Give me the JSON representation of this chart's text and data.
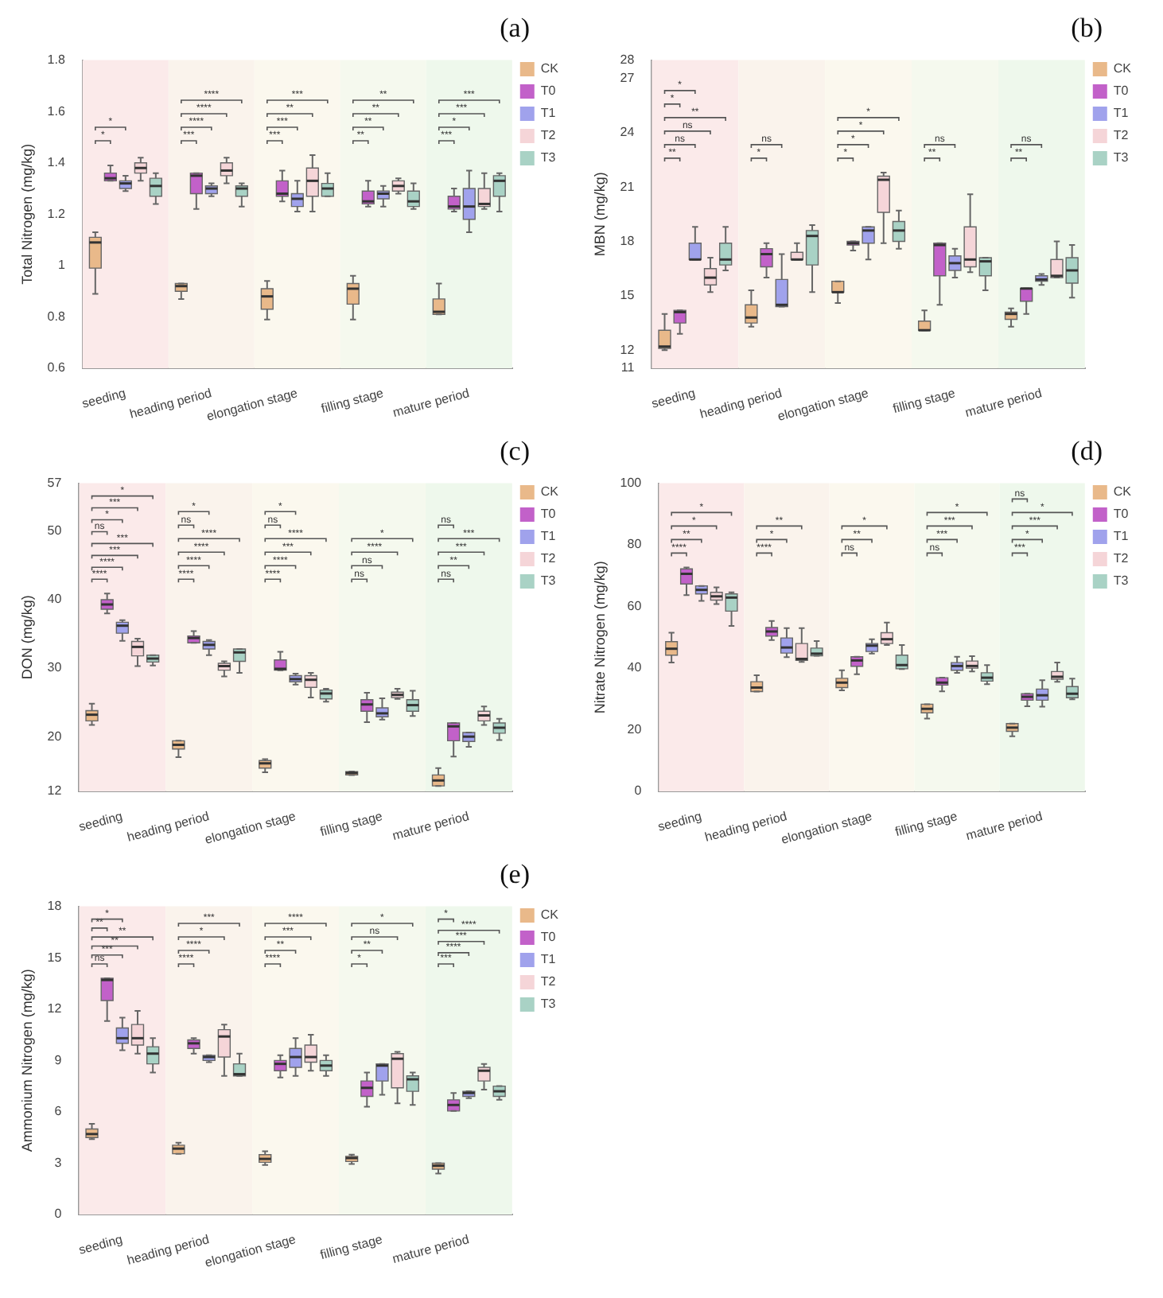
{
  "chart_data": [
    {
      "type": "box",
      "title": "(a)",
      "ylabel": "Total Nitrogen (mg/kg)",
      "categories": [
        "seeding",
        "heading period",
        "elongation stage",
        "filling stage",
        "mature period"
      ],
      "ylim": [
        0.6,
        1.8
      ],
      "yticks": [
        0.6,
        0.8,
        1,
        1.2,
        1.4,
        1.6,
        1.8
      ],
      "grid": false,
      "legend": "top right",
      "series": [
        {
          "name": "CK",
          "color": "#e9b98a",
          "boxes": [
            {
              "low": 0.89,
              "q1": 0.99,
              "median": 1.09,
              "q3": 1.11,
              "high": 1.13
            },
            {
              "low": 0.87,
              "q1": 0.9,
              "median": 0.92,
              "q3": 0.93,
              "high": 0.93
            },
            {
              "low": 0.79,
              "q1": 0.83,
              "median": 0.88,
              "q3": 0.91,
              "high": 0.94
            },
            {
              "low": 0.79,
              "q1": 0.85,
              "median": 0.91,
              "q3": 0.93,
              "high": 0.96
            },
            {
              "low": 0.81,
              "q1": 0.81,
              "median": 0.82,
              "q3": 0.87,
              "high": 0.93
            }
          ]
        },
        {
          "name": "T0",
          "color": "#c261c9",
          "boxes": [
            {
              "low": 1.33,
              "q1": 1.33,
              "median": 1.34,
              "q3": 1.36,
              "high": 1.39
            },
            {
              "low": 1.22,
              "q1": 1.28,
              "median": 1.35,
              "q3": 1.36,
              "high": 1.36
            },
            {
              "low": 1.25,
              "q1": 1.27,
              "median": 1.28,
              "q3": 1.33,
              "high": 1.37
            },
            {
              "low": 1.23,
              "q1": 1.24,
              "median": 1.25,
              "q3": 1.29,
              "high": 1.33
            },
            {
              "low": 1.21,
              "q1": 1.22,
              "median": 1.23,
              "q3": 1.27,
              "high": 1.3
            }
          ]
        },
        {
          "name": "T1",
          "color": "#a0a2ec",
          "boxes": [
            {
              "low": 1.29,
              "q1": 1.3,
              "median": 1.32,
              "q3": 1.33,
              "high": 1.35
            },
            {
              "low": 1.27,
              "q1": 1.28,
              "median": 1.3,
              "q3": 1.31,
              "high": 1.32
            },
            {
              "low": 1.21,
              "q1": 1.23,
              "median": 1.26,
              "q3": 1.28,
              "high": 1.33
            },
            {
              "low": 1.23,
              "q1": 1.26,
              "median": 1.28,
              "q3": 1.29,
              "high": 1.31
            },
            {
              "low": 1.13,
              "q1": 1.18,
              "median": 1.23,
              "q3": 1.3,
              "high": 1.37
            }
          ]
        },
        {
          "name": "T2",
          "color": "#f5d5d8",
          "boxes": [
            {
              "low": 1.33,
              "q1": 1.36,
              "median": 1.38,
              "q3": 1.4,
              "high": 1.42
            },
            {
              "low": 1.32,
              "q1": 1.35,
              "median": 1.37,
              "q3": 1.4,
              "high": 1.42
            },
            {
              "low": 1.21,
              "q1": 1.27,
              "median": 1.33,
              "q3": 1.38,
              "high": 1.43
            },
            {
              "low": 1.28,
              "q1": 1.29,
              "median": 1.31,
              "q3": 1.33,
              "high": 1.34
            },
            {
              "low": 1.22,
              "q1": 1.23,
              "median": 1.24,
              "q3": 1.3,
              "high": 1.36
            }
          ]
        },
        {
          "name": "T3",
          "color": "#a9d2c5",
          "boxes": [
            {
              "low": 1.24,
              "q1": 1.27,
              "median": 1.31,
              "q3": 1.34,
              "high": 1.36
            },
            {
              "low": 1.23,
              "q1": 1.27,
              "median": 1.3,
              "q3": 1.31,
              "high": 1.32
            },
            {
              "low": 1.27,
              "q1": 1.27,
              "median": 1.3,
              "q3": 1.32,
              "high": 1.36
            },
            {
              "low": 1.22,
              "q1": 1.23,
              "median": 1.25,
              "q3": 1.29,
              "high": 1.32
            },
            {
              "low": 1.21,
              "q1": 1.27,
              "median": 1.33,
              "q3": 1.35,
              "high": 1.36
            }
          ]
        }
      ],
      "bands": [
        {
          "axis": "x",
          "from": "seeding",
          "to": "seeding",
          "color": "#fbeaea"
        },
        {
          "axis": "x",
          "from": "heading period",
          "to": "heading period",
          "color": "#faf3ec"
        },
        {
          "axis": "x",
          "from": "elongation stage",
          "to": "elongation stage",
          "color": "#fbf8ee"
        },
        {
          "axis": "x",
          "from": "filling stage",
          "to": "filling stage",
          "color": "#f5f9ee"
        },
        {
          "axis": "x",
          "from": "mature period",
          "to": "mature period",
          "color": "#eef8ec"
        }
      ],
      "annotations": [
        "*",
        "*",
        "***",
        "****",
        "****",
        "****",
        "***",
        "***",
        "**",
        "***",
        "**",
        "**",
        "**",
        "**",
        "***",
        "*",
        "***",
        "***"
      ]
    },
    {
      "type": "box",
      "title": "(b)",
      "ylabel": "MBN (mg/kg)",
      "categories": [
        "seeding",
        "heading period",
        "elongation stage",
        "filling stage",
        "mature period"
      ],
      "ylim": [
        11,
        28
      ],
      "yticks": [
        11,
        12,
        15,
        18,
        21,
        24,
        27,
        28
      ],
      "grid": false,
      "legend": "top right",
      "series": [
        {
          "name": "CK",
          "color": "#e9b98a",
          "boxes": [
            {
              "low": 12.0,
              "q1": 12.1,
              "median": 12.2,
              "q3": 13.1,
              "high": 14.0
            },
            {
              "low": 13.3,
              "q1": 13.5,
              "median": 13.8,
              "q3": 14.5,
              "high": 15.3
            },
            {
              "low": 14.6,
              "q1": 15.2,
              "median": 15.2,
              "q3": 15.8,
              "high": 15.8
            },
            {
              "low": 13.1,
              "q1": 13.1,
              "median": 13.1,
              "q3": 13.6,
              "high": 14.2
            },
            {
              "low": 13.3,
              "q1": 13.7,
              "median": 14.0,
              "q3": 14.1,
              "high": 14.3
            }
          ]
        },
        {
          "name": "T0",
          "color": "#c261c9",
          "boxes": [
            {
              "low": 12.9,
              "q1": 13.5,
              "median": 14.1,
              "q3": 14.2,
              "high": 14.2
            },
            {
              "low": 16.0,
              "q1": 16.6,
              "median": 17.3,
              "q3": 17.6,
              "high": 17.9
            },
            {
              "low": 17.5,
              "q1": 17.8,
              "median": 17.9,
              "q3": 18.0,
              "high": 18.0
            },
            {
              "low": 14.5,
              "q1": 16.1,
              "median": 17.8,
              "q3": 17.9,
              "high": 17.9
            },
            {
              "low": 14.0,
              "q1": 14.7,
              "median": 15.4,
              "q3": 15.4,
              "high": 15.4
            }
          ]
        },
        {
          "name": "T1",
          "color": "#a0a2ec",
          "boxes": [
            {
              "low": 17.0,
              "q1": 17.0,
              "median": 17.0,
              "q3": 17.9,
              "high": 18.8
            },
            {
              "low": 14.4,
              "q1": 14.4,
              "median": 14.5,
              "q3": 15.9,
              "high": 17.3
            },
            {
              "low": 17.0,
              "q1": 17.9,
              "median": 18.6,
              "q3": 18.8,
              "high": 18.8
            },
            {
              "low": 16.0,
              "q1": 16.4,
              "median": 16.8,
              "q3": 17.2,
              "high": 17.6
            },
            {
              "low": 15.6,
              "q1": 15.8,
              "median": 15.9,
              "q3": 16.1,
              "high": 16.2
            }
          ]
        },
        {
          "name": "T2",
          "color": "#f5d5d8",
          "boxes": [
            {
              "low": 15.2,
              "q1": 15.6,
              "median": 16.0,
              "q3": 16.5,
              "high": 17.1
            },
            {
              "low": 17.0,
              "q1": 17.0,
              "median": 17.0,
              "q3": 17.4,
              "high": 17.9
            },
            {
              "low": 17.9,
              "q1": 19.6,
              "median": 21.4,
              "q3": 21.6,
              "high": 21.8
            },
            {
              "low": 16.3,
              "q1": 16.6,
              "median": 17.0,
              "q3": 18.8,
              "high": 20.6
            },
            {
              "low": 16.0,
              "q1": 16.0,
              "median": 16.1,
              "q3": 17.0,
              "high": 18.0
            }
          ]
        },
        {
          "name": "T3",
          "color": "#a9d2c5",
          "boxes": [
            {
              "low": 16.4,
              "q1": 16.7,
              "median": 17.0,
              "q3": 17.9,
              "high": 18.8
            },
            {
              "low": 15.2,
              "q1": 16.7,
              "median": 18.3,
              "q3": 18.6,
              "high": 18.9
            },
            {
              "low": 17.6,
              "q1": 18.0,
              "median": 18.6,
              "q3": 19.1,
              "high": 19.7
            },
            {
              "low": 15.3,
              "q1": 16.1,
              "median": 16.9,
              "q3": 17.1,
              "high": 17.1
            },
            {
              "low": 14.9,
              "q1": 15.7,
              "median": 16.4,
              "q3": 17.1,
              "high": 17.8
            }
          ]
        }
      ],
      "bands": [
        {
          "axis": "x",
          "from": "seeding",
          "to": "seeding",
          "color": "#fbeaea"
        },
        {
          "axis": "x",
          "from": "heading period",
          "to": "heading period",
          "color": "#faf3ec"
        },
        {
          "axis": "x",
          "from": "elongation stage",
          "to": "elongation stage",
          "color": "#fbf8ee"
        },
        {
          "axis": "x",
          "from": "filling stage",
          "to": "filling stage",
          "color": "#f5f9ee"
        },
        {
          "axis": "x",
          "from": "mature period",
          "to": "mature period",
          "color": "#eef8ec"
        }
      ],
      "annotations": [
        "**",
        "ns",
        "ns",
        "**",
        "*",
        "*",
        "*",
        "ns",
        "*",
        "*",
        "*",
        "*",
        "**",
        "ns",
        "**",
        "ns"
      ]
    },
    {
      "type": "box",
      "title": "(c)",
      "ylabel": "DON (mg/kg)",
      "categories": [
        "seeding",
        "heading period",
        "elongation stage",
        "filling stage",
        "mature period"
      ],
      "ylim": [
        12,
        57
      ],
      "yticks": [
        12,
        20,
        30,
        40,
        50,
        57
      ],
      "grid": false,
      "legend": "top right",
      "series": [
        {
          "name": "CK",
          "color": "#e9b98a",
          "boxes": [
            {
              "low": 21.7,
              "q1": 22.3,
              "median": 23.2,
              "q3": 23.8,
              "high": 24.8
            },
            {
              "low": 17.0,
              "q1": 18.2,
              "median": 18.8,
              "q3": 19.4,
              "high": 19.4
            },
            {
              "low": 14.8,
              "q1": 15.4,
              "median": 16.1,
              "q3": 16.5,
              "high": 16.7
            },
            {
              "low": 14.4,
              "q1": 14.4,
              "median": 14.7,
              "q3": 14.9,
              "high": 14.9
            },
            {
              "low": 12.8,
              "q1": 12.8,
              "median": 13.6,
              "q3": 14.4,
              "high": 15.4
            }
          ]
        },
        {
          "name": "T0",
          "color": "#c261c9",
          "boxes": [
            {
              "low": 38.0,
              "q1": 38.6,
              "median": 39.3,
              "q3": 40.0,
              "high": 40.9
            },
            {
              "low": 33.7,
              "q1": 33.7,
              "median": 34.4,
              "q3": 34.7,
              "high": 35.4
            },
            {
              "low": 29.7,
              "q1": 29.7,
              "median": 29.9,
              "q3": 31.2,
              "high": 32.4
            },
            {
              "low": 22.1,
              "q1": 23.7,
              "median": 24.7,
              "q3": 25.4,
              "high": 26.4
            },
            {
              "low": 17.1,
              "q1": 19.4,
              "median": 21.5,
              "q3": 22.0,
              "high": 22.0
            }
          ]
        },
        {
          "name": "T1",
          "color": "#a0a2ec",
          "boxes": [
            {
              "low": 34.0,
              "q1": 35.1,
              "median": 36.2,
              "q3": 36.7,
              "high": 37.0
            },
            {
              "low": 31.9,
              "q1": 32.8,
              "median": 33.4,
              "q3": 33.9,
              "high": 34.1
            },
            {
              "low": 27.6,
              "q1": 28.0,
              "median": 28.4,
              "q3": 28.9,
              "high": 29.2
            },
            {
              "low": 22.5,
              "q1": 22.9,
              "median": 23.4,
              "q3": 24.2,
              "high": 25.6
            },
            {
              "low": 18.5,
              "q1": 19.3,
              "median": 20.0,
              "q3": 20.6,
              "high": 20.6
            }
          ]
        },
        {
          "name": "T2",
          "color": "#f5d5d8",
          "boxes": [
            {
              "low": 30.3,
              "q1": 31.8,
              "median": 33.1,
              "q3": 33.9,
              "high": 34.3
            },
            {
              "low": 28.8,
              "q1": 29.7,
              "median": 30.3,
              "q3": 30.7,
              "high": 31.0
            },
            {
              "low": 25.7,
              "q1": 27.2,
              "median": 28.3,
              "q3": 28.9,
              "high": 29.3
            },
            {
              "low": 25.5,
              "q1": 25.7,
              "median": 26.1,
              "q3": 26.5,
              "high": 27.0
            },
            {
              "low": 21.7,
              "q1": 22.3,
              "median": 23.1,
              "q3": 23.7,
              "high": 24.4
            }
          ]
        },
        {
          "name": "T3",
          "color": "#a9d2c5",
          "boxes": [
            {
              "low": 30.4,
              "q1": 30.9,
              "median": 31.4,
              "q3": 31.9,
              "high": 31.9
            },
            {
              "low": 29.3,
              "q1": 31.0,
              "median": 32.3,
              "q3": 32.8,
              "high": 32.8
            },
            {
              "low": 25.1,
              "q1": 25.5,
              "median": 26.3,
              "q3": 26.8,
              "high": 27.0
            },
            {
              "low": 23.0,
              "q1": 23.7,
              "median": 24.6,
              "q3": 25.4,
              "high": 26.7
            },
            {
              "low": 19.5,
              "q1": 20.5,
              "median": 21.3,
              "q3": 22.0,
              "high": 22.6
            }
          ]
        }
      ],
      "bands": [
        {
          "axis": "x",
          "from": "seeding",
          "to": "seeding",
          "color": "#fbeaea"
        },
        {
          "axis": "x",
          "from": "heading period",
          "to": "heading period",
          "color": "#faf3ec"
        },
        {
          "axis": "x",
          "from": "elongation stage",
          "to": "elongation stage",
          "color": "#fbf8ee"
        },
        {
          "axis": "x",
          "from": "filling stage",
          "to": "filling stage",
          "color": "#f5f9ee"
        },
        {
          "axis": "x",
          "from": "mature period",
          "to": "mature period",
          "color": "#eef8ec"
        }
      ],
      "annotations": [
        "****",
        "****",
        "***",
        "***",
        "ns",
        "*",
        "***",
        "*",
        "****",
        "****",
        "****",
        "****",
        "ns",
        "*",
        "****",
        "****",
        "***",
        "****",
        "ns",
        "*",
        "ns",
        "ns",
        "****",
        "*",
        "ns",
        "**",
        "***",
        "***",
        "ns"
      ]
    },
    {
      "type": "box",
      "title": "(d)",
      "ylabel": "Nitrate Nitrogen (mg/kg)",
      "categories": [
        "seeding",
        "heading period",
        "elongation stage",
        "filling stage",
        "mature period"
      ],
      "ylim": [
        0,
        100
      ],
      "yticks": [
        0,
        20,
        40,
        60,
        80,
        100
      ],
      "grid": false,
      "legend": "top right",
      "series": [
        {
          "name": "CK",
          "color": "#e9b98a",
          "boxes": [
            {
              "low": 41.8,
              "q1": 44.2,
              "median": 46.3,
              "q3": 48.6,
              "high": 51.5
            },
            {
              "low": 32.4,
              "q1": 32.4,
              "median": 33.7,
              "q3": 35.6,
              "high": 37.7
            },
            {
              "low": 32.8,
              "q1": 33.7,
              "median": 35.3,
              "q3": 36.7,
              "high": 39.3
            },
            {
              "low": 23.6,
              "q1": 25.5,
              "median": 26.8,
              "q3": 28.3,
              "high": 28.3
            },
            {
              "low": 17.9,
              "q1": 19.5,
              "median": 20.7,
              "q3": 22.0,
              "high": 22.0
            }
          ]
        },
        {
          "name": "T0",
          "color": "#c261c9",
          "boxes": [
            {
              "low": 63.7,
              "q1": 67.3,
              "median": 70.6,
              "q3": 72.2,
              "high": 72.7
            },
            {
              "low": 49.1,
              "q1": 50.4,
              "median": 51.9,
              "q3": 53.2,
              "high": 55.3
            },
            {
              "low": 38.0,
              "q1": 40.6,
              "median": 42.5,
              "q3": 43.7,
              "high": 43.7
            },
            {
              "low": 32.5,
              "q1": 34.5,
              "median": 35.3,
              "q3": 36.9,
              "high": 36.9
            },
            {
              "low": 27.6,
              "q1": 29.6,
              "median": 30.7,
              "q3": 31.7,
              "high": 31.7
            }
          ]
        },
        {
          "name": "T1",
          "color": "#a0a2ec",
          "boxes": [
            {
              "low": 61.8,
              "q1": 64.1,
              "median": 65.4,
              "q3": 66.7,
              "high": 66.7
            },
            {
              "low": 43.6,
              "q1": 44.9,
              "median": 46.7,
              "q3": 49.8,
              "high": 53.0
            },
            {
              "low": 44.7,
              "q1": 45.4,
              "median": 47.3,
              "q3": 48.0,
              "high": 49.4
            },
            {
              "low": 38.5,
              "q1": 39.3,
              "median": 40.7,
              "q3": 41.8,
              "high": 43.7
            },
            {
              "low": 27.5,
              "q1": 29.6,
              "median": 31.2,
              "q3": 33.2,
              "high": 36.1
            }
          ]
        },
        {
          "name": "T2",
          "color": "#f5d5d8",
          "boxes": [
            {
              "low": 60.8,
              "q1": 62.1,
              "median": 63.3,
              "q3": 64.6,
              "high": 66.2
            },
            {
              "low": 42.0,
              "q1": 42.5,
              "median": 43.0,
              "q3": 48.0,
              "high": 53.0
            },
            {
              "low": 47.5,
              "q1": 48.0,
              "median": 49.4,
              "q3": 51.5,
              "high": 54.8
            },
            {
              "low": 38.9,
              "q1": 40.0,
              "median": 40.7,
              "q3": 42.3,
              "high": 43.9
            },
            {
              "low": 35.6,
              "q1": 36.4,
              "median": 37.2,
              "q3": 38.9,
              "high": 41.8
            }
          ]
        },
        {
          "name": "T3",
          "color": "#a9d2c5",
          "boxes": [
            {
              "low": 53.7,
              "q1": 58.5,
              "median": 62.9,
              "q3": 64.1,
              "high": 64.6
            },
            {
              "low": 44.0,
              "q1": 44.0,
              "median": 44.7,
              "q3": 46.5,
              "high": 48.8
            },
            {
              "low": 39.7,
              "q1": 39.8,
              "median": 41.0,
              "q3": 44.2,
              "high": 47.5
            },
            {
              "low": 34.8,
              "q1": 35.8,
              "median": 36.9,
              "q3": 38.5,
              "high": 41.0
            },
            {
              "low": 29.9,
              "q1": 30.4,
              "median": 31.7,
              "q3": 34.0,
              "high": 36.6
            }
          ]
        }
      ],
      "bands": [
        {
          "axis": "x",
          "from": "seeding",
          "to": "seeding",
          "color": "#fbeaea"
        },
        {
          "axis": "x",
          "from": "heading period",
          "to": "heading period",
          "color": "#faf3ec"
        },
        {
          "axis": "x",
          "from": "elongation stage",
          "to": "elongation stage",
          "color": "#fbf8ee"
        },
        {
          "axis": "x",
          "from": "filling stage",
          "to": "filling stage",
          "color": "#f5f9ee"
        },
        {
          "axis": "x",
          "from": "mature period",
          "to": "mature period",
          "color": "#eef8ec"
        }
      ],
      "annotations": [
        "****",
        "**",
        "*",
        "*",
        "****",
        "*",
        "**",
        "ns",
        "**",
        "*",
        "ns",
        "***",
        "***",
        "*",
        "***",
        "*",
        "***",
        "*",
        "ns"
      ]
    },
    {
      "type": "box",
      "title": "(e)",
      "ylabel": "Ammonium Nitrogen (mg/kg)",
      "categories": [
        "seeding",
        "heading period",
        "elongation stage",
        "filling stage",
        "mature period"
      ],
      "ylim": [
        0,
        18
      ],
      "yticks": [
        0,
        3,
        6,
        9,
        12,
        15,
        18
      ],
      "grid": false,
      "legend": "top right",
      "series": [
        {
          "name": "CK",
          "color": "#e9b98a",
          "boxes": [
            {
              "low": 4.4,
              "q1": 4.5,
              "median": 4.7,
              "q3": 5.0,
              "high": 5.3
            },
            {
              "low": 3.55,
              "q1": 3.55,
              "median": 3.85,
              "q3": 4.05,
              "high": 4.2
            },
            {
              "low": 2.9,
              "q1": 3.05,
              "median": 3.25,
              "q3": 3.5,
              "high": 3.7
            },
            {
              "low": 2.95,
              "q1": 3.1,
              "median": 3.3,
              "q3": 3.4,
              "high": 3.5
            },
            {
              "low": 2.4,
              "q1": 2.65,
              "median": 2.85,
              "q3": 3.0,
              "high": 3.0
            }
          ]
        },
        {
          "name": "T0",
          "color": "#c261c9",
          "boxes": [
            {
              "low": 11.3,
              "q1": 12.5,
              "median": 13.7,
              "q3": 13.8,
              "high": 13.8
            },
            {
              "low": 9.4,
              "q1": 9.7,
              "median": 10.0,
              "q3": 10.2,
              "high": 10.3
            },
            {
              "low": 8.0,
              "q1": 8.4,
              "median": 8.8,
              "q3": 9.0,
              "high": 9.3
            },
            {
              "low": 6.3,
              "q1": 6.9,
              "median": 7.4,
              "q3": 7.8,
              "high": 8.3
            },
            {
              "low": 6.05,
              "q1": 6.05,
              "median": 6.4,
              "q3": 6.7,
              "high": 7.1
            }
          ]
        },
        {
          "name": "T1",
          "color": "#a0a2ec",
          "boxes": [
            {
              "low": 9.6,
              "q1": 10.0,
              "median": 10.3,
              "q3": 10.9,
              "high": 11.5
            },
            {
              "low": 8.9,
              "q1": 9.0,
              "median": 9.2,
              "q3": 9.3,
              "high": 9.3
            },
            {
              "low": 8.1,
              "q1": 8.6,
              "median": 9.2,
              "q3": 9.7,
              "high": 10.3
            },
            {
              "low": 7.0,
              "q1": 7.8,
              "median": 8.7,
              "q3": 8.8,
              "high": 8.8
            },
            {
              "low": 6.8,
              "q1": 6.9,
              "median": 7.1,
              "q3": 7.2,
              "high": 7.2
            }
          ]
        },
        {
          "name": "T2",
          "color": "#f5d5d8",
          "boxes": [
            {
              "low": 9.4,
              "q1": 9.9,
              "median": 10.3,
              "q3": 11.1,
              "high": 11.9
            },
            {
              "low": 8.1,
              "q1": 9.2,
              "median": 10.4,
              "q3": 10.8,
              "high": 11.1
            },
            {
              "low": 8.4,
              "q1": 8.9,
              "median": 9.2,
              "q3": 9.9,
              "high": 10.5
            },
            {
              "low": 6.5,
              "q1": 7.4,
              "median": 9.1,
              "q3": 9.4,
              "high": 9.5
            },
            {
              "low": 7.3,
              "q1": 7.8,
              "median": 8.4,
              "q3": 8.6,
              "high": 8.8
            }
          ]
        },
        {
          "name": "T3",
          "color": "#a9d2c5",
          "boxes": [
            {
              "low": 8.3,
              "q1": 8.8,
              "median": 9.4,
              "q3": 9.8,
              "high": 10.3
            },
            {
              "low": 8.1,
              "q1": 8.1,
              "median": 8.2,
              "q3": 8.8,
              "high": 9.4
            },
            {
              "low": 8.1,
              "q1": 8.4,
              "median": 8.7,
              "q3": 9.0,
              "high": 9.3
            },
            {
              "low": 6.4,
              "q1": 7.2,
              "median": 7.9,
              "q3": 8.1,
              "high": 8.3
            },
            {
              "low": 6.7,
              "q1": 6.9,
              "median": 7.2,
              "q3": 7.5,
              "high": 7.5
            }
          ]
        }
      ],
      "bands": [
        {
          "axis": "x",
          "from": "seeding",
          "to": "seeding",
          "color": "#fbeaea"
        },
        {
          "axis": "x",
          "from": "heading period",
          "to": "heading period",
          "color": "#faf3ec"
        },
        {
          "axis": "x",
          "from": "elongation stage",
          "to": "elongation stage",
          "color": "#fbf8ee"
        },
        {
          "axis": "x",
          "from": "filling stage",
          "to": "filling stage",
          "color": "#f5f9ee"
        },
        {
          "axis": "x",
          "from": "mature period",
          "to": "mature period",
          "color": "#eef8ec"
        }
      ],
      "annotations": [
        "ns",
        "***",
        "**",
        "**",
        "**",
        "*",
        "****",
        "****",
        "*",
        "***",
        "****",
        "**",
        "***",
        "****",
        "*",
        "**",
        "ns",
        "*",
        "***",
        "****",
        "***",
        "****",
        "*"
      ]
    }
  ]
}
